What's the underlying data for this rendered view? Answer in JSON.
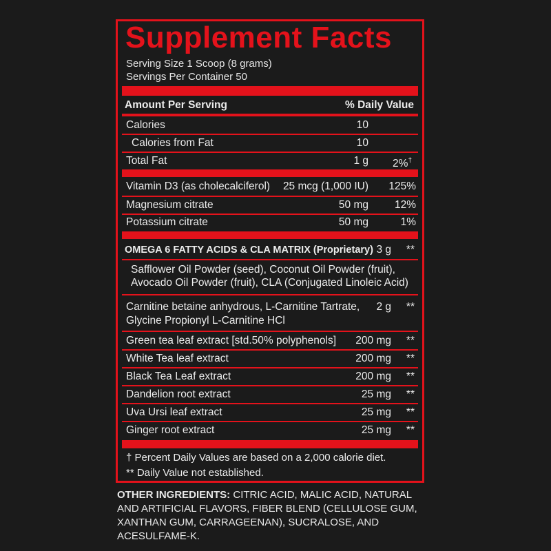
{
  "title": "Supplement Facts",
  "serving_size": "Serving Size 1 Scoop (8 grams)",
  "servings_per_container": "Servings Per Container 50",
  "header": {
    "amount": "Amount Per Serving",
    "dv": "% Daily Value"
  },
  "rows": [
    {
      "name": "Calories",
      "amount": "10",
      "dv": ""
    },
    {
      "name": "Calories from Fat",
      "amount": "10",
      "dv": ""
    },
    {
      "name": "Total Fat",
      "amount": "1 g",
      "dv": "2%",
      "dv_mark": "†"
    },
    {
      "name": "Vitamin D3 (as cholecalciferol)",
      "amount": "25 mcg (1,000 IU)",
      "dv": "125%"
    },
    {
      "name": "Magnesium citrate",
      "amount": "50 mg",
      "dv": "12%"
    },
    {
      "name": "Potassium citrate",
      "amount": "50 mg",
      "dv": "1%"
    },
    {
      "name": "OMEGA 6 FATTY ACIDS & CLA MATRIX (Proprietary)",
      "amount": "3 g",
      "dv": "**"
    },
    {
      "name": "Safflower Oil Powder (seed), Coconut Oil Powder (fruit),",
      "name2": "Avocado Oil Powder (fruit), CLA (Conjugated Linoleic Acid)"
    },
    {
      "name": "Carnitine betaine anhydrous, L-Carnitine Tartrate,",
      "name2": "Glycine Propionyl L-Carnitine HCl",
      "amount": "2 g",
      "dv": "**"
    },
    {
      "name": "Green tea leaf extract [std.50% polyphenols]",
      "amount": "200 mg",
      "dv": "**"
    },
    {
      "name": "White Tea leaf extract",
      "amount": "200 mg",
      "dv": "**"
    },
    {
      "name": "Black Tea Leaf extract",
      "amount": "200 mg",
      "dv": "**"
    },
    {
      "name": "Dandelion root extract",
      "amount": "25 mg",
      "dv": "**"
    },
    {
      "name": "Uva Ursi leaf extract",
      "amount": "25 mg",
      "dv": "**"
    },
    {
      "name": "Ginger root extract",
      "amount": "25 mg",
      "dv": "**"
    }
  ],
  "footnotes": {
    "percent": "† Percent Daily Values are based on a 2,000 calorie diet.",
    "not_established": "** Daily Value not established."
  },
  "other_ingredients": {
    "label": "OTHER INGREDIENTS:",
    "text": " CITRIC ACID, MALIC ACID, NATURAL AND ARTIFICIAL FLAVORS, FIBER BLEND (CELLULOSE GUM, XANTHAN GUM, CARRAGEENAN), SUCRALOSE, AND ACESULFAME-K."
  },
  "colors": {
    "accent": "#e4121b",
    "background": "#1b1b1b",
    "text": "#f2f2f2"
  }
}
